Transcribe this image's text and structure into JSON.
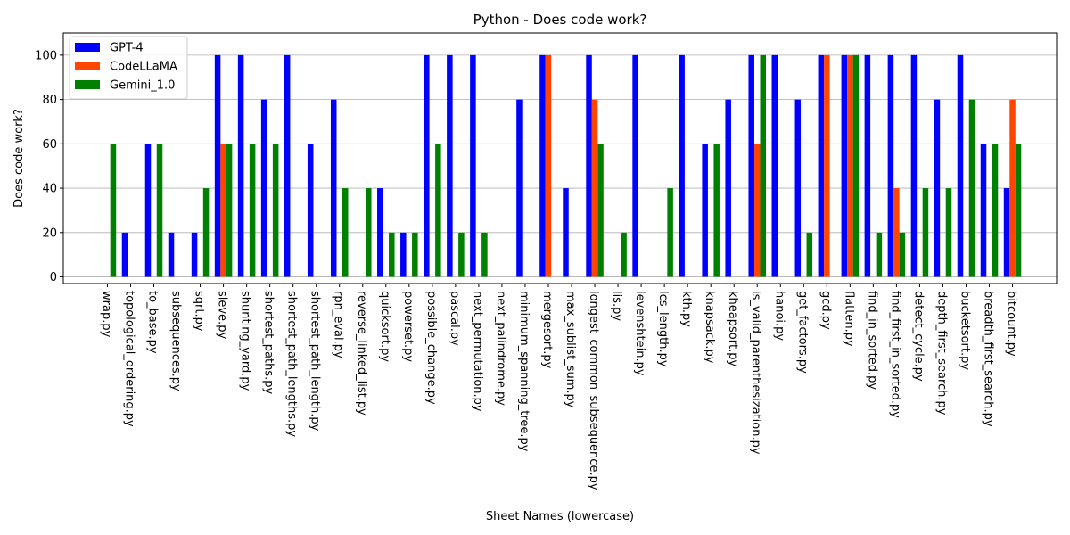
{
  "chart_data": {
    "type": "bar",
    "title": "Python - Does code work?",
    "xlabel": "Sheet Names (lowercase)",
    "ylabel": "Does code work?",
    "ylim": [
      -3,
      110
    ],
    "yticks": [
      0,
      20,
      40,
      60,
      80,
      100
    ],
    "grid": "y",
    "legend_position": "top-left",
    "categories": [
      "wrap.py",
      "topological_ordering.py",
      "to_base.py",
      "subsequences.py",
      "sqrt.py",
      "sieve.py",
      "shunting_yard.py",
      "shortest_paths.py",
      "shortest_path_lengths.py",
      "shortest_path_length.py",
      "rpn_eval.py",
      "reverse_linked_list.py",
      "quicksort.py",
      "powerset.py",
      "possible_change.py",
      "pascal.py",
      "next_permutation.py",
      "next_palindrome.py",
      "minimum_spanning_tree.py",
      "mergesort.py",
      "max_sublist_sum.py",
      "longest_common_subsequence.py",
      "lis.py",
      "levenshtein.py",
      "lcs_length.py",
      "kth.py",
      "knapsack.py",
      "kheapsort.py",
      "is_valid_parenthesization.py",
      "hanoi.py",
      "get_factors.py",
      "gcd.py",
      "flatten.py",
      "find_in_sorted.py",
      "find_first_in_sorted.py",
      "detect_cycle.py",
      "depth_first_search.py",
      "bucketsort.py",
      "breadth_first_search.py",
      "bitcount.py"
    ],
    "series": [
      {
        "name": "GPT-4",
        "color": "#0000ff",
        "values": [
          0,
          20,
          60,
          20,
          20,
          100,
          100,
          80,
          100,
          60,
          80,
          0,
          40,
          20,
          100,
          100,
          100,
          0,
          80,
          100,
          40,
          100,
          0,
          100,
          0,
          100,
          60,
          80,
          100,
          100,
          80,
          100,
          100,
          100,
          100,
          100,
          80,
          100,
          60,
          40
        ]
      },
      {
        "name": "CodeLLaMA",
        "color": "#ff4500",
        "values": [
          0,
          0,
          0,
          0,
          0,
          60,
          0,
          0,
          0,
          0,
          0,
          0,
          0,
          0,
          0,
          0,
          0,
          0,
          0,
          100,
          0,
          80,
          0,
          0,
          0,
          0,
          0,
          0,
          60,
          0,
          0,
          100,
          100,
          0,
          40,
          0,
          0,
          0,
          0,
          80
        ]
      },
      {
        "name": "Gemini_1.0",
        "color": "#008000",
        "values": [
          60,
          0,
          60,
          0,
          40,
          60,
          60,
          60,
          0,
          0,
          40,
          40,
          20,
          20,
          60,
          20,
          20,
          0,
          0,
          0,
          0,
          60,
          20,
          0,
          40,
          0,
          60,
          0,
          100,
          0,
          20,
          0,
          100,
          20,
          20,
          40,
          40,
          80,
          60,
          60
        ]
      }
    ]
  }
}
